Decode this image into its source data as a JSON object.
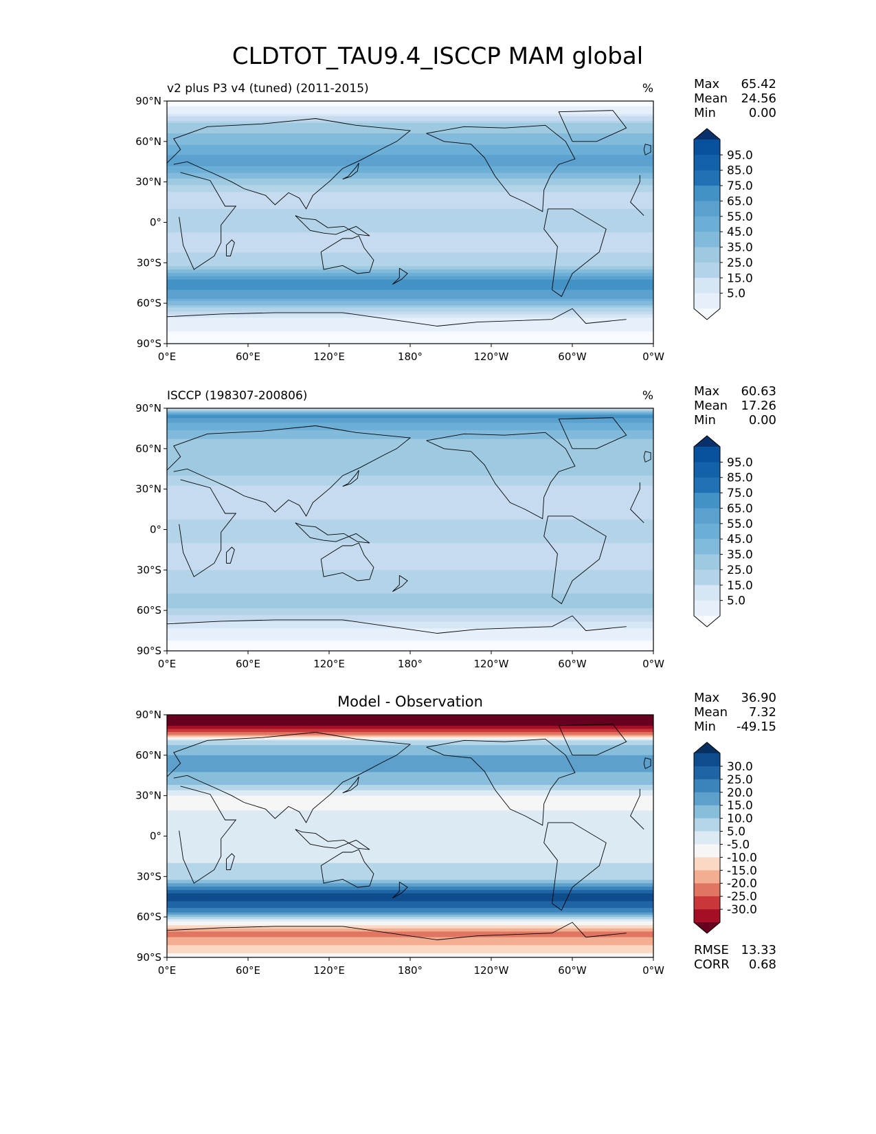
{
  "title": "CLDTOT_TAU9.4_ISCCP MAM global",
  "colors": {
    "seq": [
      "#f7fbff",
      "#deebf7",
      "#c6dbef",
      "#9ecae1",
      "#6baed6",
      "#4292c6",
      "#2171b5",
      "#08519c",
      "#08306b"
    ],
    "seq_panel": [
      "#f7fbff",
      "#e6f0fa",
      "#d6e6f4",
      "#c6dbef",
      "#b3d3e8",
      "#9ecae1",
      "#82badb",
      "#6baed6",
      "#5aa1cf",
      "#4292c6",
      "#2f7ebc",
      "#2171b5",
      "#1361a8",
      "#08519c",
      "#08306b"
    ],
    "div": [
      "#67001f",
      "#a50f25",
      "#c9373a",
      "#e07562",
      "#f3ad90",
      "#fbd8c4",
      "#f6f6f6",
      "#dceaf3",
      "#b5d6e8",
      "#88bedb",
      "#5da0cb",
      "#3a83bb",
      "#1f64a5",
      "#0e4c8c",
      "#053061"
    ],
    "coast": "#000000"
  },
  "panels": [
    {
      "id": "test",
      "left_title": "v2 plus P3 v4 (tuned) (2011-2015)",
      "center_title": "",
      "units": "%",
      "stats": {
        "Max": "65.42",
        "Mean": "24.56",
        "Min": "0.00"
      },
      "colorbar_labels": [
        "95.0",
        "85.0",
        "75.0",
        "65.0",
        "55.0",
        "45.0",
        "35.0",
        "25.0",
        "15.0",
        "5.0"
      ],
      "kind": "seq",
      "bands": [
        {
          "lat": 90,
          "v": 0
        },
        {
          "lat": 82,
          "v": 1
        },
        {
          "lat": 72,
          "v": 5
        },
        {
          "lat": 60,
          "v": 6
        },
        {
          "lat": 45,
          "v": 8
        },
        {
          "lat": 35,
          "v": 6
        },
        {
          "lat": 20,
          "v": 3
        },
        {
          "lat": 0,
          "v": 4
        },
        {
          "lat": -15,
          "v": 3
        },
        {
          "lat": -30,
          "v": 4
        },
        {
          "lat": -45,
          "v": 9
        },
        {
          "lat": -55,
          "v": 8
        },
        {
          "lat": -65,
          "v": 4
        },
        {
          "lat": -72,
          "v": 1
        },
        {
          "lat": -90,
          "v": 0
        }
      ]
    },
    {
      "id": "obs",
      "left_title": "ISCCP (198307-200806)",
      "center_title": "",
      "units": "%",
      "stats": {
        "Max": "60.63",
        "Mean": "17.26",
        "Min": "0.00"
      },
      "colorbar_labels": [
        "95.0",
        "85.0",
        "75.0",
        "65.0",
        "55.0",
        "45.0",
        "35.0",
        "25.0",
        "15.0",
        "5.0"
      ],
      "kind": "seq",
      "bands": [
        {
          "lat": 90,
          "v": 2
        },
        {
          "lat": 85,
          "v": 9
        },
        {
          "lat": 78,
          "v": 7
        },
        {
          "lat": 65,
          "v": 5
        },
        {
          "lat": 45,
          "v": 5
        },
        {
          "lat": 30,
          "v": 3
        },
        {
          "lat": 15,
          "v": 3
        },
        {
          "lat": 0,
          "v": 4
        },
        {
          "lat": -20,
          "v": 3
        },
        {
          "lat": -40,
          "v": 4
        },
        {
          "lat": -55,
          "v": 5
        },
        {
          "lat": -65,
          "v": 3
        },
        {
          "lat": -75,
          "v": 1
        },
        {
          "lat": -90,
          "v": 0
        }
      ]
    },
    {
      "id": "diff",
      "left_title": "",
      "center_title": "Model - Observation",
      "units": "",
      "stats": {
        "Max": "36.90",
        "Mean": "7.32",
        "Min": "-49.15"
      },
      "colorbar_labels": [
        "30.0",
        "25.0",
        "20.0",
        "15.0",
        "10.0",
        "5.0",
        "-5.0",
        "-10.0",
        "-15.0",
        "-20.0",
        "-25.0",
        "-30.0"
      ],
      "kind": "div",
      "bands": [
        {
          "lat": 90,
          "v": 0
        },
        {
          "lat": 83,
          "v": 0
        },
        {
          "lat": 76,
          "v": 3
        },
        {
          "lat": 70,
          "v": 8
        },
        {
          "lat": 55,
          "v": 10
        },
        {
          "lat": 40,
          "v": 9
        },
        {
          "lat": 28,
          "v": 6
        },
        {
          "lat": 10,
          "v": 7
        },
        {
          "lat": -10,
          "v": 7
        },
        {
          "lat": -30,
          "v": 8
        },
        {
          "lat": -45,
          "v": 13
        },
        {
          "lat": -55,
          "v": 11
        },
        {
          "lat": -65,
          "v": 6
        },
        {
          "lat": -72,
          "v": 3
        },
        {
          "lat": -90,
          "v": 6
        }
      ],
      "extra": {
        "RMSE": "13.33",
        "CORR": "0.68"
      }
    }
  ],
  "axes": {
    "lat_ticks": [
      "90°N",
      "60°N",
      "30°N",
      "0°",
      "30°S",
      "60°S",
      "90°S"
    ],
    "lon_ticks": [
      "0°E",
      "60°E",
      "120°E",
      "180°",
      "120°W",
      "60°W",
      "0°W"
    ]
  }
}
